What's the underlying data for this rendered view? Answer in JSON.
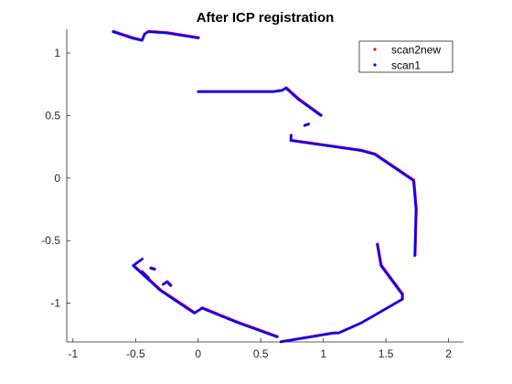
{
  "chart_data": {
    "type": "scatter",
    "title": "After ICP registration",
    "xlabel": "",
    "ylabel": "",
    "xlim": [
      -1.05,
      2.12
    ],
    "ylim": [
      -1.31,
      1.19
    ],
    "xticks": [
      -1,
      -0.5,
      0,
      0.5,
      1,
      1.5,
      2
    ],
    "yticks": [
      1,
      0.5,
      0,
      -0.5,
      -1
    ],
    "xtick_labels": [
      "-1",
      "-0.5",
      "0",
      "0.5",
      "1",
      "1.5",
      "2"
    ],
    "ytick_labels": [
      "1",
      "0.5",
      "0",
      "-0.5",
      "-1"
    ],
    "grid": false,
    "legend_position": "top-right",
    "series": [
      {
        "name": "scan2new",
        "color": "#ff0000",
        "marker": "point",
        "segments": [
          [
            [
              -0.68,
              1.17
            ],
            [
              -0.53,
              1.12
            ],
            [
              -0.45,
              1.1
            ],
            [
              -0.43,
              1.15
            ],
            [
              -0.4,
              1.17
            ],
            [
              -0.25,
              1.16
            ],
            [
              0.0,
              1.12
            ]
          ],
          [
            [
              0.0,
              0.69
            ],
            [
              0.3,
              0.69
            ],
            [
              0.6,
              0.69
            ],
            [
              0.67,
              0.7
            ],
            [
              0.7,
              0.72
            ],
            [
              0.8,
              0.63
            ],
            [
              0.98,
              0.5
            ]
          ],
          [
            [
              0.85,
              0.42
            ],
            [
              0.88,
              0.43
            ]
          ],
          [
            [
              0.74,
              0.34
            ],
            [
              0.74,
              0.3
            ],
            [
              0.95,
              0.27
            ],
            [
              1.3,
              0.22
            ],
            [
              1.41,
              0.19
            ],
            [
              1.72,
              -0.02
            ],
            [
              1.74,
              -0.25
            ],
            [
              1.73,
              -0.62
            ]
          ],
          [
            [
              1.43,
              -0.53
            ],
            [
              1.46,
              -0.7
            ],
            [
              1.63,
              -0.93
            ],
            [
              1.63,
              -0.97
            ],
            [
              1.3,
              -1.16
            ],
            [
              1.12,
              -1.24
            ],
            [
              1.08,
              -1.24
            ],
            [
              0.66,
              -1.31
            ]
          ],
          [
            [
              0.63,
              -1.27
            ],
            [
              0.3,
              -1.15
            ],
            [
              0.03,
              -1.04
            ],
            [
              -0.03,
              -1.08
            ],
            [
              -0.3,
              -0.9
            ],
            [
              -0.52,
              -0.7
            ],
            [
              -0.45,
              -0.65
            ]
          ],
          [
            [
              -0.45,
              -0.75
            ],
            [
              -0.4,
              -0.8
            ]
          ],
          [
            [
              -0.28,
              -0.85
            ],
            [
              -0.25,
              -0.83
            ],
            [
              -0.22,
              -0.86
            ]
          ],
          [
            [
              -0.38,
              -0.72
            ],
            [
              -0.35,
              -0.73
            ]
          ]
        ]
      },
      {
        "name": "scan1",
        "color": "#0000ff",
        "marker": "point",
        "segments": [
          [
            [
              -0.68,
              1.17
            ],
            [
              -0.53,
              1.12
            ],
            [
              -0.45,
              1.1
            ],
            [
              -0.43,
              1.15
            ],
            [
              -0.4,
              1.17
            ],
            [
              -0.25,
              1.16
            ],
            [
              0.0,
              1.12
            ]
          ],
          [
            [
              0.0,
              0.69
            ],
            [
              0.3,
              0.69
            ],
            [
              0.6,
              0.69
            ],
            [
              0.67,
              0.7
            ],
            [
              0.7,
              0.72
            ],
            [
              0.8,
              0.63
            ],
            [
              0.98,
              0.5
            ]
          ],
          [
            [
              0.85,
              0.42
            ],
            [
              0.88,
              0.43
            ]
          ],
          [
            [
              0.74,
              0.34
            ],
            [
              0.74,
              0.3
            ],
            [
              0.95,
              0.27
            ],
            [
              1.3,
              0.22
            ],
            [
              1.41,
              0.19
            ],
            [
              1.72,
              -0.02
            ],
            [
              1.74,
              -0.25
            ],
            [
              1.73,
              -0.62
            ]
          ],
          [
            [
              1.43,
              -0.53
            ],
            [
              1.46,
              -0.7
            ],
            [
              1.63,
              -0.93
            ],
            [
              1.63,
              -0.97
            ],
            [
              1.3,
              -1.16
            ],
            [
              1.12,
              -1.24
            ],
            [
              1.08,
              -1.24
            ],
            [
              0.66,
              -1.31
            ]
          ],
          [
            [
              0.63,
              -1.27
            ],
            [
              0.3,
              -1.15
            ],
            [
              0.03,
              -1.04
            ],
            [
              -0.03,
              -1.08
            ],
            [
              -0.3,
              -0.9
            ],
            [
              -0.52,
              -0.7
            ],
            [
              -0.45,
              -0.65
            ]
          ],
          [
            [
              -0.45,
              -0.75
            ],
            [
              -0.4,
              -0.8
            ]
          ],
          [
            [
              -0.28,
              -0.85
            ],
            [
              -0.25,
              -0.83
            ],
            [
              -0.22,
              -0.86
            ]
          ],
          [
            [
              -0.38,
              -0.72
            ],
            [
              -0.35,
              -0.73
            ]
          ]
        ]
      }
    ]
  }
}
